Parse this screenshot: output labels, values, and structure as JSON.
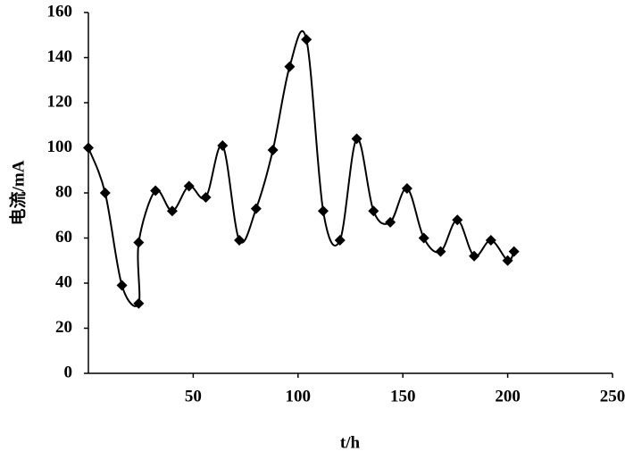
{
  "chart_data": {
    "type": "line",
    "x_label": "t/h",
    "y_label": "电流/mA",
    "x": [
      0,
      8,
      16,
      24,
      24,
      32,
      40,
      48,
      56,
      64,
      72,
      80,
      88,
      96,
      104,
      112,
      120,
      128,
      136,
      144,
      152,
      160,
      168,
      176,
      184,
      192,
      200,
      203
    ],
    "series": [
      {
        "name": "电流",
        "color": "#000000",
        "values": [
          100,
          80,
          39,
          31,
          58,
          81,
          72,
          83,
          78,
          101,
          59,
          73,
          99,
          136,
          148,
          72,
          59,
          104,
          72,
          67,
          82,
          60,
          54,
          68,
          52,
          59,
          50,
          54
        ]
      }
    ],
    "xlim": [
      0,
      250
    ],
    "xticks": [
      50,
      100,
      150,
      200,
      250
    ],
    "ylim": [
      0,
      160
    ],
    "yticks": [
      0,
      20,
      40,
      60,
      80,
      100,
      120,
      140,
      160
    ],
    "grid": false,
    "smooth": true,
    "marker": "diamond"
  }
}
